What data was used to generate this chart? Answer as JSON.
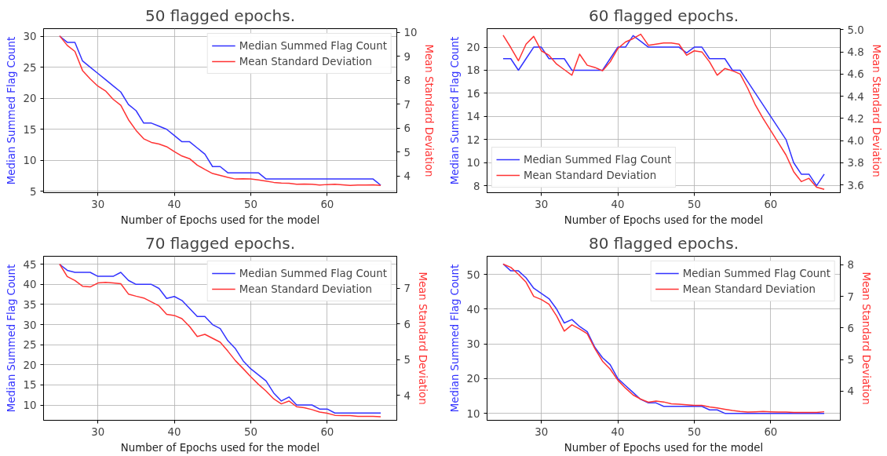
{
  "chart_data": [
    {
      "type": "line",
      "title": "50 flagged epochs.",
      "xlabel": "Number of Epochs used for the model",
      "ylabel": "Median Summed Flag Count",
      "y2label": "Mean Standard Deviation",
      "legend": "top right",
      "grid": true,
      "x": [
        25,
        26,
        27,
        28,
        29,
        30,
        31,
        32,
        33,
        34,
        35,
        36,
        37,
        38,
        39,
        40,
        41,
        42,
        43,
        44,
        45,
        46,
        47,
        48,
        49,
        50,
        51,
        52,
        53,
        54,
        55,
        56,
        57,
        58,
        59,
        60,
        61,
        62,
        63,
        64,
        65,
        66,
        67
      ],
      "xlim": [
        22.9,
        69.1
      ],
      "xticks": [
        30,
        40,
        50,
        60
      ],
      "ylim": [
        4.8,
        31.2
      ],
      "yticks": [
        5,
        10,
        15,
        20,
        25,
        30
      ],
      "y2lim": [
        3.3,
        10.15
      ],
      "y2ticks": [
        4,
        5,
        6,
        7,
        8,
        9,
        10
      ],
      "series": [
        {
          "name": "Median Summed Flag Count",
          "color": "#3333ff",
          "values": [
            30,
            29,
            29,
            26,
            25,
            24,
            23,
            22,
            21,
            19,
            18,
            16,
            16,
            15.5,
            15,
            14,
            13,
            13,
            12,
            11,
            9,
            9,
            8,
            8,
            8,
            8,
            8,
            7,
            7,
            7,
            7,
            7,
            7,
            7,
            7,
            7,
            7,
            7,
            7,
            7,
            7,
            7,
            6
          ]
        },
        {
          "name": "Mean Standard Deviation",
          "color": "#ff3333",
          "axis": "y2",
          "values": [
            9.85,
            9.45,
            9.2,
            8.4,
            8.05,
            7.75,
            7.55,
            7.2,
            6.95,
            6.35,
            5.9,
            5.55,
            5.4,
            5.33,
            5.22,
            5.02,
            4.83,
            4.72,
            4.45,
            4.27,
            4.1,
            4.02,
            3.94,
            3.87,
            3.88,
            3.87,
            3.83,
            3.78,
            3.73,
            3.7,
            3.69,
            3.65,
            3.66,
            3.65,
            3.62,
            3.64,
            3.65,
            3.63,
            3.6,
            3.62,
            3.62,
            3.63,
            3.6
          ]
        }
      ]
    },
    {
      "type": "line",
      "title": "60 flagged epochs.",
      "xlabel": "Number of Epochs used for the model",
      "ylabel": "Median Summed Flag Count",
      "y2label": "Mean Standard Deviation",
      "legend": "bottom left",
      "grid": true,
      "x": [
        25,
        26,
        27,
        28,
        29,
        30,
        31,
        32,
        33,
        34,
        35,
        36,
        37,
        38,
        39,
        40,
        41,
        42,
        43,
        44,
        45,
        46,
        47,
        48,
        49,
        50,
        51,
        52,
        53,
        54,
        55,
        56,
        57,
        58,
        59,
        60,
        61,
        62,
        63,
        64,
        65,
        66,
        67
      ],
      "xlim": [
        22.9,
        69.1
      ],
      "xticks": [
        30,
        40,
        50,
        60
      ],
      "ylim": [
        7.4,
        21.6
      ],
      "yticks": [
        8,
        10,
        12,
        14,
        16,
        18,
        20
      ],
      "y2lim": [
        3.53,
        5.01
      ],
      "y2ticks": [
        {
          "value": 3.6,
          "label": "3.6"
        },
        {
          "value": 3.8,
          "label": "3.8"
        },
        {
          "value": 4.0,
          "label": "4.0"
        },
        {
          "value": 4.2,
          "label": "4.2"
        },
        {
          "value": 4.4,
          "label": "4.4"
        },
        {
          "value": 4.6,
          "label": "4.6"
        },
        {
          "value": 4.8,
          "label": "4.8"
        },
        {
          "value": 5.0,
          "label": "5.0"
        }
      ],
      "series": [
        {
          "name": "Median Summed Flag Count",
          "color": "#3333ff",
          "values": [
            19,
            19,
            18,
            19,
            20,
            20,
            19,
            19,
            19,
            18,
            18,
            18,
            18,
            18,
            19,
            20,
            20,
            21,
            20.5,
            20,
            20,
            20,
            20,
            20,
            19.5,
            20,
            20,
            19,
            19,
            19,
            18,
            18,
            17,
            16,
            15,
            14,
            13,
            12,
            10,
            9,
            9,
            8,
            9
          ]
        },
        {
          "name": "Mean Standard Deviation",
          "color": "#ff3333",
          "axis": "y2",
          "values": [
            4.95,
            4.84,
            4.72,
            4.87,
            4.94,
            4.81,
            4.77,
            4.69,
            4.64,
            4.59,
            4.78,
            4.68,
            4.66,
            4.63,
            4.71,
            4.83,
            4.89,
            4.92,
            4.96,
            4.86,
            4.87,
            4.88,
            4.88,
            4.87,
            4.77,
            4.81,
            4.8,
            4.71,
            4.59,
            4.65,
            4.63,
            4.6,
            4.47,
            4.32,
            4.2,
            4.09,
            3.98,
            3.87,
            3.72,
            3.63,
            3.66,
            3.58,
            3.56
          ]
        }
      ]
    },
    {
      "type": "line",
      "title": "70 flagged epochs.",
      "xlabel": "Number of Epochs used for the model",
      "ylabel": "Median Summed Flag Count",
      "y2label": "Mean Standard Deviation",
      "legend": "top right",
      "grid": true,
      "x": [
        25,
        26,
        27,
        28,
        29,
        30,
        31,
        32,
        33,
        34,
        35,
        36,
        37,
        38,
        39,
        40,
        41,
        42,
        43,
        44,
        45,
        46,
        47,
        48,
        49,
        50,
        51,
        52,
        53,
        54,
        55,
        56,
        57,
        58,
        59,
        60,
        61,
        62,
        63,
        64,
        65,
        66,
        67
      ],
      "xlim": [
        22.9,
        69.1
      ],
      "xticks": [
        30,
        40,
        50,
        60
      ],
      "ylim": [
        6.2,
        47
      ],
      "yticks": [
        10,
        15,
        20,
        25,
        30,
        35,
        40,
        45
      ],
      "y2lim": [
        3.3,
        7.9
      ],
      "y2ticks": [
        4,
        5,
        6,
        7
      ],
      "series": [
        {
          "name": "Median Summed Flag Count",
          "color": "#3333ff",
          "values": [
            45,
            43.5,
            43,
            43,
            43,
            42,
            42,
            42,
            43,
            41,
            40,
            40,
            40,
            39,
            36.5,
            37,
            36,
            34,
            32,
            32,
            30,
            29,
            26,
            24,
            21,
            19,
            17.5,
            16,
            13,
            11,
            12,
            10,
            10,
            10,
            9,
            9,
            8,
            8,
            8,
            8,
            8,
            8,
            8
          ]
        },
        {
          "name": "Mean Standard Deviation",
          "color": "#ff3333",
          "axis": "y2",
          "values": [
            7.68,
            7.33,
            7.22,
            7.06,
            7.04,
            7.15,
            7.17,
            7.15,
            7.13,
            6.84,
            6.78,
            6.73,
            6.62,
            6.51,
            6.27,
            6.24,
            6.15,
            5.93,
            5.65,
            5.71,
            5.6,
            5.49,
            5.24,
            4.97,
            4.75,
            4.52,
            4.31,
            4.12,
            3.9,
            3.76,
            3.84,
            3.68,
            3.65,
            3.6,
            3.53,
            3.5,
            3.44,
            3.43,
            3.43,
            3.41,
            3.41,
            3.41,
            3.4
          ]
        }
      ]
    },
    {
      "type": "line",
      "title": "80 flagged epochs.",
      "xlabel": "Number of Epochs used for the model",
      "ylabel": "Median Summed Flag Count",
      "y2label": "Mean Standard Deviation",
      "legend": "top right",
      "grid": true,
      "x": [
        25,
        26,
        27,
        28,
        29,
        30,
        31,
        32,
        33,
        34,
        35,
        36,
        37,
        38,
        39,
        40,
        41,
        42,
        43,
        44,
        45,
        46,
        47,
        48,
        49,
        50,
        51,
        52,
        53,
        54,
        55,
        56,
        57,
        58,
        59,
        60,
        61,
        62,
        63,
        64,
        65,
        66,
        67
      ],
      "xlim": [
        22.9,
        69.1
      ],
      "xticks": [
        30,
        40,
        50,
        60
      ],
      "ylim": [
        8,
        55.2
      ],
      "yticks": [
        10,
        20,
        30,
        40,
        50
      ],
      "y2lim": [
        3.08,
        8.27
      ],
      "y2ticks": [
        4,
        5,
        6,
        7,
        8
      ],
      "series": [
        {
          "name": "Median Summed Flag Count",
          "color": "#3333ff",
          "values": [
            53,
            51,
            51,
            49,
            46,
            44.5,
            43,
            40,
            36,
            37,
            35,
            33.5,
            29,
            26,
            24,
            20,
            18,
            16,
            14,
            13,
            13,
            12,
            12,
            12,
            12,
            12,
            12,
            11,
            11,
            10,
            10,
            10,
            10,
            10,
            10,
            10,
            10,
            10,
            10,
            10,
            10,
            10,
            10
          ]
        },
        {
          "name": "Mean Standard Deviation",
          "color": "#ff3333",
          "axis": "y2",
          "values": [
            8.02,
            7.92,
            7.7,
            7.45,
            7.0,
            6.9,
            6.75,
            6.38,
            5.9,
            6.1,
            5.97,
            5.82,
            5.35,
            4.95,
            4.7,
            4.35,
            4.1,
            3.88,
            3.75,
            3.65,
            3.69,
            3.66,
            3.6,
            3.59,
            3.57,
            3.55,
            3.55,
            3.5,
            3.47,
            3.43,
            3.39,
            3.36,
            3.34,
            3.35,
            3.36,
            3.35,
            3.34,
            3.34,
            3.33,
            3.33,
            3.33,
            3.33,
            3.35
          ]
        }
      ]
    }
  ]
}
